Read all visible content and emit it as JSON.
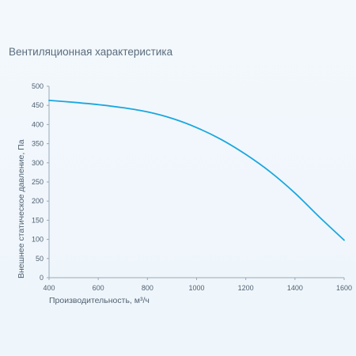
{
  "chart_data": {
    "type": "line",
    "title": "Вентиляционная характеристика",
    "xlabel": "Производительность, м³/ч",
    "ylabel": "Внешнее статическое давление, Па",
    "xlim": [
      400,
      1600
    ],
    "ylim": [
      0,
      500
    ],
    "x_ticks": [
      "400",
      "600",
      "800",
      "1000",
      "1200",
      "1400",
      "1600"
    ],
    "y_ticks": [
      "0",
      "50",
      "100",
      "150",
      "200",
      "250",
      "300",
      "350",
      "400",
      "450",
      "500"
    ],
    "grid": false,
    "series": [
      {
        "color": "#1aa7e0",
        "points": [
          [
            400,
            463
          ],
          [
            500,
            458
          ],
          [
            600,
            452
          ],
          [
            700,
            444
          ],
          [
            800,
            433
          ],
          [
            900,
            416
          ],
          [
            1000,
            392
          ],
          [
            1100,
            361
          ],
          [
            1200,
            322
          ],
          [
            1300,
            276
          ],
          [
            1400,
            221
          ],
          [
            1500,
            158
          ],
          [
            1600,
            98
          ]
        ]
      }
    ]
  }
}
